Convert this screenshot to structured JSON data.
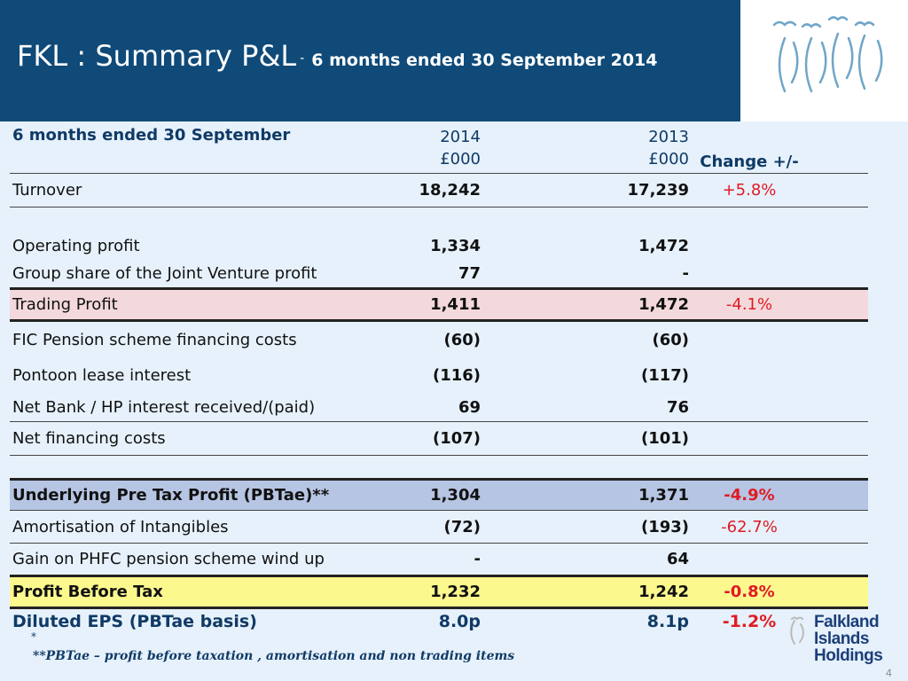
{
  "slide": {
    "title_main": "FKL : Summary P&L",
    "title_dash": "-",
    "title_sub": "6 months ended 30 September 2014",
    "page_number": "4"
  },
  "table": {
    "header": {
      "label": "6 months ended 30 September",
      "col2014_year": "2014",
      "col2014_unit": "£000",
      "col2013_year": "2013",
      "col2013_unit": "£000",
      "change": "Change  +/-"
    },
    "rows": {
      "turnover": {
        "label": "Turnover",
        "v2014": "18,242",
        "v2013": "17,239",
        "change": "+5.8%"
      },
      "operating_profit": {
        "label": "Operating profit",
        "v2014": "1,334",
        "v2013": "1,472",
        "change": ""
      },
      "jv_profit": {
        "label": "Group share of the Joint Venture profit",
        "v2014": "77",
        "v2013": "-",
        "change": ""
      },
      "trading_profit": {
        "label": "Trading Profit",
        "v2014": "1,411",
        "v2013": "1,472",
        "change": "-4.1%"
      },
      "pension_costs": {
        "label": "FIC Pension scheme financing costs",
        "v2014": "(60)",
        "v2013": "(60)",
        "change": ""
      },
      "pontoon": {
        "label": "Pontoon lease interest",
        "v2014": "(116)",
        "v2013": "(117)",
        "change": ""
      },
      "net_bank": {
        "label": "Net Bank / HP interest received/(paid)",
        "v2014": "69",
        "v2013": "76",
        "change": ""
      },
      "net_financing": {
        "label": "Net financing costs",
        "v2014": "(107)",
        "v2013": "(101)",
        "change": ""
      },
      "pbtae": {
        "label": "Underlying Pre Tax Profit (PBTae)**",
        "v2014": "1,304",
        "v2013": "1,371",
        "change": "-4.9%"
      },
      "amortisation": {
        "label": "Amortisation of Intangibles",
        "v2014": "(72)",
        "v2013": "(193)",
        "change": "-62.7%"
      },
      "phfc_gain": {
        "label": "Gain on PHFC  pension scheme wind up",
        "v2014": "-",
        "v2013": "64",
        "change": ""
      },
      "pbt": {
        "label": "Profit Before Tax",
        "v2014": "1,232",
        "v2013": "1,242",
        "change": "-0.8%"
      },
      "eps": {
        "label": "Diluted EPS (PBTae basis)",
        "v2014": "8.0p",
        "v2013": "8.1p",
        "change": "-1.2%"
      }
    }
  },
  "footnote": {
    "star": "*",
    "text": "**PBTae – profit before taxation , amortisation and non trading items"
  },
  "logo": {
    "line1": "Falkland",
    "line2": "Islands",
    "line3": "Holdings"
  },
  "colors": {
    "header_bg": "#0f4a78",
    "negative": "#e01b24",
    "trading_bg": "#f3d9db",
    "pbtae_bg": "#b6c5e3",
    "pbt_bg": "#fbf88e"
  }
}
